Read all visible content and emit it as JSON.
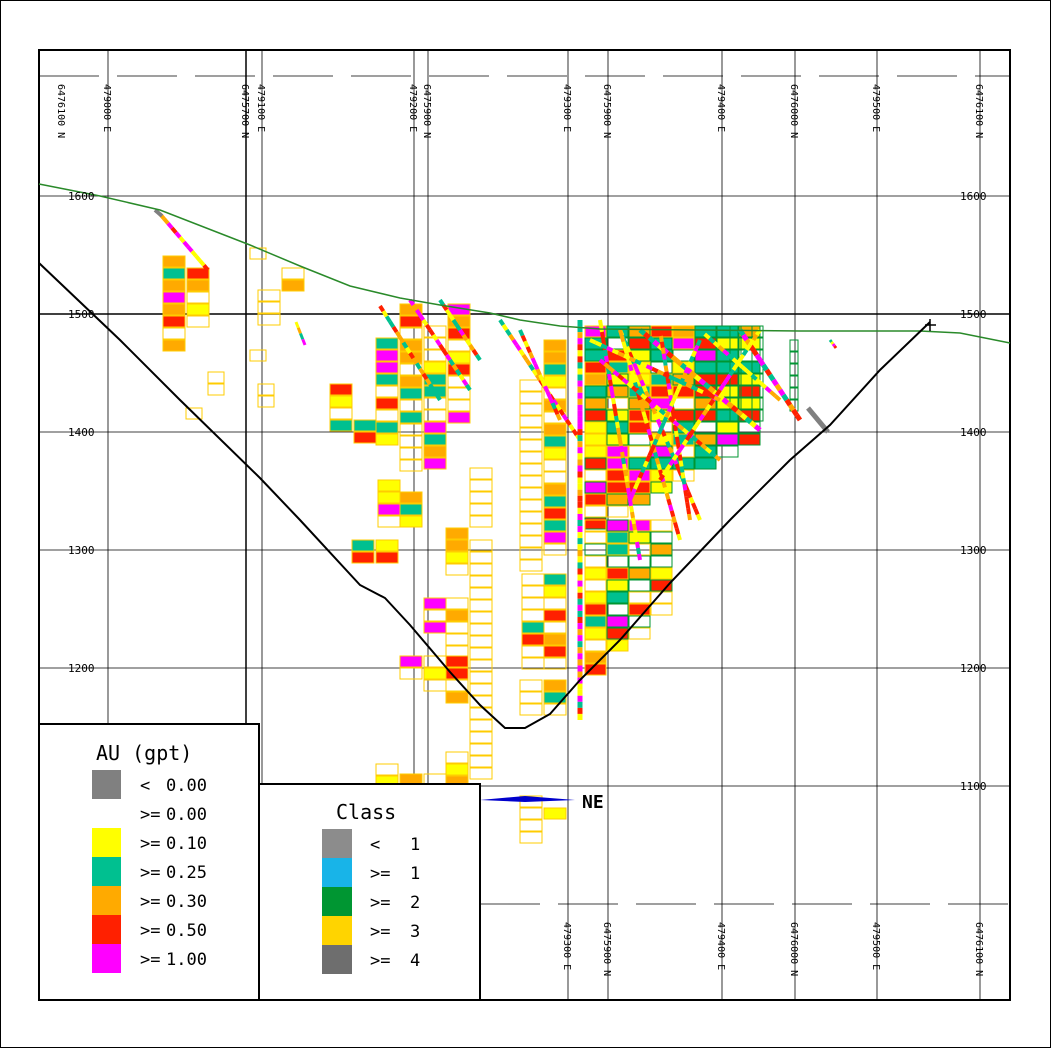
{
  "section": {
    "elevations": [
      "1600",
      "1500",
      "1400",
      "1300",
      "1200",
      "1100"
    ],
    "top_grid_labels": [
      "6476100 N",
      "479000 E",
      "6475700 N",
      "479100 E",
      "479200 E",
      "6475900 N",
      "479300 E",
      "6475900 N",
      "479400 E",
      "6476000 N",
      "479500 E",
      "6476100 N"
    ],
    "bottom_grid_labels": [
      "479300 E",
      "6475900 N",
      "479400 E",
      "6476000 N",
      "479500 E",
      "6476100 N"
    ],
    "direction_label": "NE"
  },
  "legend_au": {
    "title": "AU (gpt)",
    "items": [
      {
        "op": "<",
        "value": "0.00",
        "color": "#808080"
      },
      {
        "op": ">=",
        "value": "0.00",
        "color": ""
      },
      {
        "op": ">=",
        "value": "0.10",
        "color": "#ffff00"
      },
      {
        "op": ">=",
        "value": "0.25",
        "color": "#00c090"
      },
      {
        "op": ">=",
        "value": "0.30",
        "color": "#ffaa00"
      },
      {
        "op": ">=",
        "value": "0.50",
        "color": "#ff2000"
      },
      {
        "op": ">=",
        "value": "1.00",
        "color": "#ff00ff"
      }
    ]
  },
  "legend_class": {
    "title": "Class",
    "items": [
      {
        "op": "<",
        "value": "1",
        "color": "#8c8c8c"
      },
      {
        "op": ">=",
        "value": "1",
        "color": "#18b4e8"
      },
      {
        "op": ">=",
        "value": "2",
        "color": "#009632"
      },
      {
        "op": ">=",
        "value": "3",
        "color": "#ffd400"
      },
      {
        "op": ">=",
        "value": "4",
        "color": "#6e6e6e"
      }
    ]
  },
  "colors": {
    "topography": "#2a8a2a",
    "pit_shell": "#000000",
    "class3_outline": "#ffcc00",
    "class2_outline": "#009632",
    "direction_arrow": "#0000cc"
  }
}
